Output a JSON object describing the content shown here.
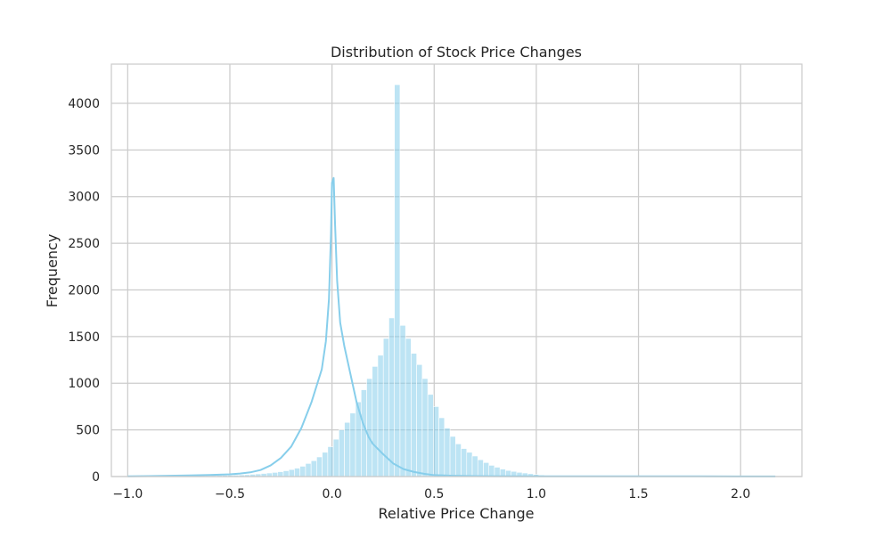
{
  "chart_data": {
    "type": "bar",
    "title": "Distribution of Stock Price Changes",
    "xlabel": "Relative Price Change",
    "ylabel": "Frequency",
    "xlim": [
      -1.08,
      2.3
    ],
    "ylim": [
      0,
      4420
    ],
    "grid": true,
    "legend": "none",
    "xticks": [
      -1.0,
      -0.5,
      0.0,
      0.5,
      1.0,
      1.5,
      2.0
    ],
    "xtick_labels": [
      "−1.0",
      "−0.5",
      "0.0",
      "0.5",
      "1.0",
      "1.5",
      "2.0"
    ],
    "yticks": [
      0,
      500,
      1000,
      1500,
      2000,
      2500,
      3000,
      3500,
      4000
    ],
    "ytick_labels": [
      "0",
      "500",
      "1000",
      "1500",
      "2000",
      "2500",
      "3000",
      "3500",
      "4000"
    ],
    "bin_width": 0.0272,
    "bin_start": -1.0,
    "series": [
      {
        "values": [
          3,
          2,
          2,
          2,
          3,
          3,
          4,
          4,
          5,
          6,
          7,
          8,
          9,
          10,
          10,
          11,
          12,
          13,
          14,
          16,
          18,
          20,
          24,
          28,
          33,
          38,
          44,
          52,
          62,
          75,
          90,
          110,
          140,
          170,
          210,
          260,
          320,
          400,
          500,
          580,
          680,
          800,
          930,
          1050,
          1180,
          1300,
          1480,
          1700,
          4200,
          1620,
          1480,
          1320,
          1200,
          1050,
          880,
          750,
          630,
          520,
          430,
          350,
          300,
          260,
          220,
          180,
          150,
          120,
          100,
          80,
          65,
          55,
          45,
          38,
          30,
          22,
          16,
          12,
          9,
          7,
          6,
          5,
          4,
          4,
          3,
          3,
          3,
          3,
          3,
          2,
          2,
          2,
          2,
          2,
          2,
          2,
          2,
          2,
          2,
          2,
          2,
          1,
          1,
          1,
          1,
          1,
          1,
          1,
          1,
          1,
          1,
          1,
          1,
          1,
          1,
          1,
          1,
          1,
          1,
          1,
          1,
          1,
          1
        ],
        "color": "#87ceeb"
      }
    ],
    "kde": {
      "color": "#87ceeb",
      "points": [
        [
          -1.0,
          3
        ],
        [
          -0.9,
          5
        ],
        [
          -0.8,
          8
        ],
        [
          -0.7,
          12
        ],
        [
          -0.6,
          17
        ],
        [
          -0.55,
          20
        ],
        [
          -0.5,
          24
        ],
        [
          -0.45,
          32
        ],
        [
          -0.4,
          45
        ],
        [
          -0.35,
          70
        ],
        [
          -0.3,
          120
        ],
        [
          -0.25,
          200
        ],
        [
          -0.2,
          320
        ],
        [
          -0.15,
          520
        ],
        [
          -0.1,
          800
        ],
        [
          -0.05,
          1150
        ],
        [
          -0.03,
          1450
        ],
        [
          -0.015,
          1900
        ],
        [
          -0.005,
          2600
        ],
        [
          0.0,
          3150
        ],
        [
          0.008,
          3200
        ],
        [
          0.015,
          2700
        ],
        [
          0.025,
          2100
        ],
        [
          0.04,
          1650
        ],
        [
          0.06,
          1400
        ],
        [
          0.08,
          1200
        ],
        [
          0.1,
          1000
        ],
        [
          0.12,
          800
        ],
        [
          0.15,
          580
        ],
        [
          0.18,
          420
        ],
        [
          0.2,
          350
        ],
        [
          0.25,
          240
        ],
        [
          0.3,
          140
        ],
        [
          0.35,
          80
        ],
        [
          0.4,
          50
        ],
        [
          0.45,
          30
        ],
        [
          0.5,
          15
        ],
        [
          0.6,
          8
        ],
        [
          0.7,
          5
        ],
        [
          0.8,
          4
        ],
        [
          1.0,
          3
        ],
        [
          1.2,
          3
        ],
        [
          1.5,
          2
        ],
        [
          1.8,
          2
        ],
        [
          2.0,
          1
        ],
        [
          2.17,
          1
        ]
      ]
    }
  }
}
